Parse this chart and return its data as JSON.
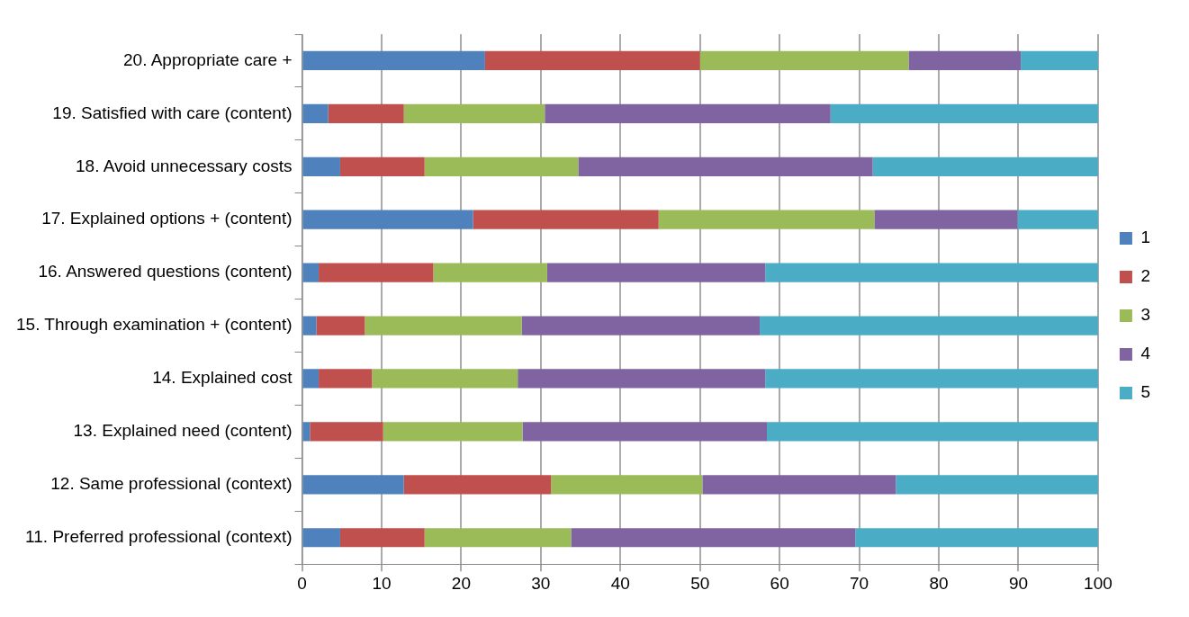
{
  "chart_data": {
    "type": "bar",
    "orientation": "horizontal",
    "stacked": true,
    "legend": "right",
    "grid": "x",
    "categories": [
      "20. Appropriate care +",
      "19. Satisfied with care (content)",
      "18. Avoid unnecessary costs",
      "17. Explained options + (content)",
      "16. Answered questions (content)",
      "15. Through examination + (content)",
      "14. Explained cost",
      "13. Explained need (content)",
      "12. Same professional (context)",
      "11. Preferred professional (context)"
    ],
    "xlim": [
      0,
      100
    ],
    "xticks": [
      0,
      10,
      20,
      30,
      40,
      50,
      60,
      70,
      80,
      90,
      100
    ],
    "series": [
      {
        "name": "1",
        "color": "#4f81bd",
        "values": [
          23,
          3.3,
          4.8,
          21.5,
          2.1,
          1.8,
          2.1,
          1,
          12.8,
          4.8
        ]
      },
      {
        "name": "2",
        "color": "#c0504d",
        "values": [
          27,
          9.5,
          10.6,
          23.3,
          14.4,
          6.1,
          6.7,
          9.2,
          18.5,
          10.6
        ]
      },
      {
        "name": "3",
        "color": "#9bbb59",
        "values": [
          26.2,
          17.7,
          19.3,
          27.1,
          14.3,
          19.7,
          18.3,
          17.5,
          19,
          18.4
        ]
      },
      {
        "name": "4",
        "color": "#8064a2",
        "values": [
          14.1,
          35.9,
          37,
          18,
          27.4,
          29.9,
          31.1,
          30.7,
          24.3,
          35.7
        ]
      },
      {
        "name": "5",
        "color": "#4bacc6",
        "values": [
          9.7,
          33.6,
          28.3,
          10.1,
          41.8,
          42.5,
          41.8,
          41.6,
          25.4,
          30.5
        ]
      }
    ]
  }
}
